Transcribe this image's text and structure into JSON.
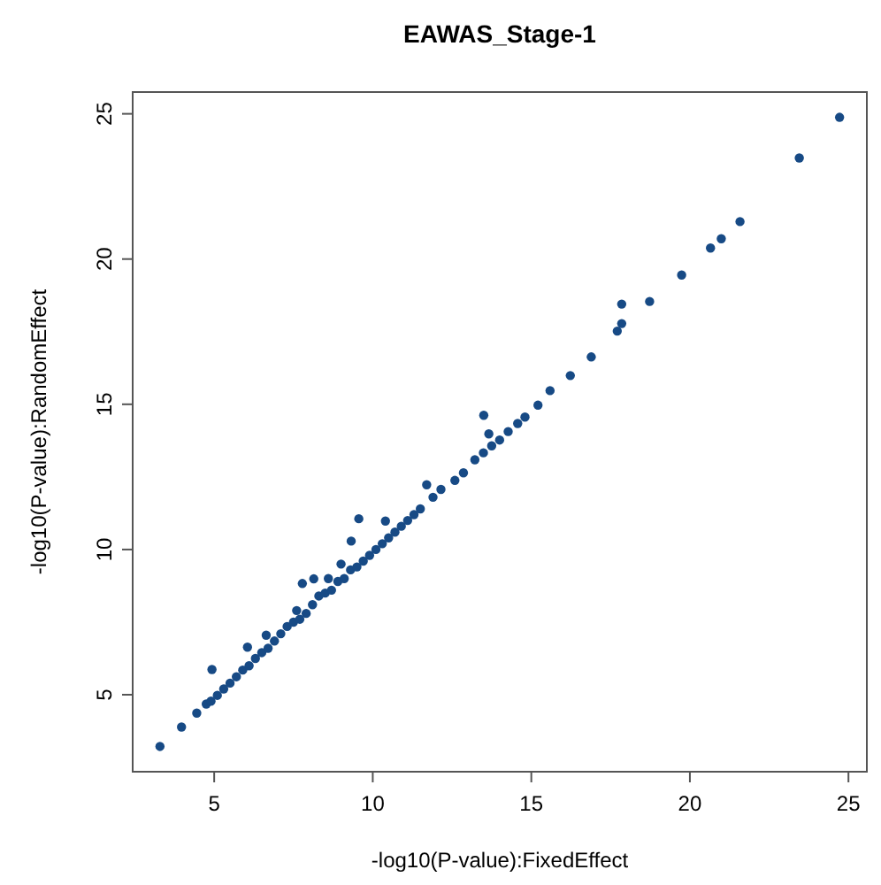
{
  "chart_data": {
    "type": "scatter",
    "title": "EAWAS_Stage-1",
    "xlabel": "-log10(P-value):FixedEffect",
    "ylabel": "-log10(P-value):RandomEffect",
    "xlim": [
      2.43,
      25.58
    ],
    "ylim": [
      2.35,
      25.75
    ],
    "xticks": [
      5,
      10,
      15,
      20,
      25
    ],
    "yticks": [
      5,
      10,
      15,
      20,
      25
    ],
    "marker": "circle",
    "grid": false,
    "series": [
      {
        "color": "#174a85",
        "x": [
          3.29,
          3.97,
          4.45,
          4.75,
          4.93,
          4.9,
          5.1,
          5.3,
          5.5,
          5.7,
          5.9,
          6.05,
          6.1,
          6.3,
          6.5,
          6.64,
          6.7,
          6.9,
          7.1,
          7.3,
          7.5,
          7.6,
          7.7,
          7.78,
          7.9,
          8.1,
          8.14,
          8.3,
          8.5,
          8.6,
          8.7,
          8.9,
          9.0,
          9.1,
          9.3,
          9.32,
          9.5,
          9.56,
          9.7,
          9.9,
          10.1,
          10.3,
          10.4,
          10.5,
          10.7,
          10.9,
          11.1,
          11.3,
          11.5,
          11.7,
          11.9,
          12.15,
          12.59,
          12.86,
          13.22,
          13.49,
          13.5,
          13.66,
          13.75,
          14.0,
          14.27,
          14.57,
          14.8,
          15.21,
          15.59,
          16.23,
          16.89,
          17.71,
          17.85,
          17.85,
          18.73,
          19.74,
          20.65,
          20.99,
          21.58,
          23.45,
          24.72
        ],
        "values": [
          3.22,
          3.89,
          4.37,
          4.68,
          5.87,
          4.78,
          4.98,
          5.2,
          5.4,
          5.62,
          5.85,
          6.64,
          6.0,
          6.25,
          6.45,
          7.05,
          6.6,
          6.85,
          7.1,
          7.35,
          7.5,
          7.9,
          7.6,
          8.83,
          7.8,
          8.1,
          8.99,
          8.4,
          8.5,
          9.0,
          8.6,
          8.9,
          9.5,
          9.0,
          9.3,
          10.29,
          9.4,
          11.06,
          9.6,
          9.8,
          10.0,
          10.2,
          10.98,
          10.4,
          10.6,
          10.8,
          11.0,
          11.2,
          11.4,
          12.23,
          11.8,
          12.07,
          12.38,
          12.64,
          13.09,
          13.33,
          14.62,
          13.98,
          13.57,
          13.77,
          14.06,
          14.34,
          14.56,
          14.97,
          15.47,
          15.99,
          16.63,
          17.52,
          17.78,
          18.45,
          18.54,
          19.45,
          20.38,
          20.7,
          21.29,
          23.48,
          24.88
        ]
      }
    ]
  }
}
